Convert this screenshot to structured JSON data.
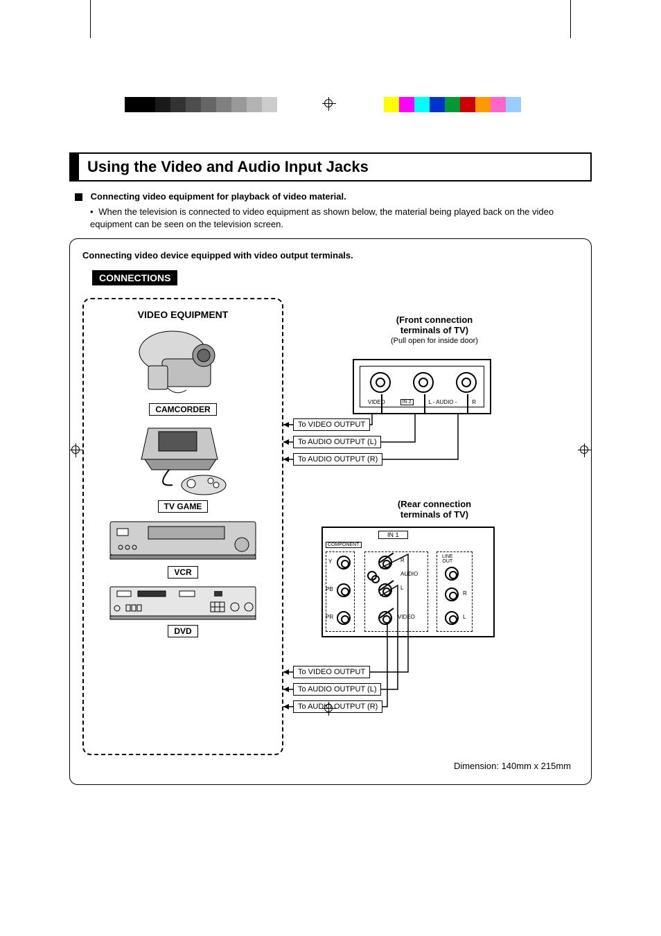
{
  "page": {
    "title": "Using the Video and Audio Input Jacks",
    "intro_heading": "Connecting video equipment for playback of video material.",
    "intro_body": "When the television is connected to video equipment as shown below, the material being played back on the video equipment can be seen on the television screen.",
    "dimension_note": "Dimension: 140mm x 215mm"
  },
  "panel": {
    "subtitle": "Connecting video device equipped with video output terminals.",
    "connections_label": "CONNECTIONS",
    "equipment_title": "VIDEO EQUIPMENT",
    "devices": {
      "camcorder": "CAMCORDER",
      "tvgame": "TV GAME",
      "vcr": "VCR",
      "dvd": "DVD"
    }
  },
  "front": {
    "heading": "(Front connection\nterminals of TV)",
    "sub": "(Pull open for inside door)",
    "jack_labels": {
      "video": "VIDEO",
      "in2": "IN 2",
      "audio_l": "L - AUDIO -",
      "audio_r": "R"
    },
    "signals": {
      "video": "To VIDEO OUTPUT",
      "audio_l": "To AUDIO OUTPUT (L)",
      "audio_r": "To AUDIO OUTPUT (R)"
    }
  },
  "rear": {
    "heading": "(Rear connection\nterminals of TV)",
    "in1": "IN 1",
    "component": "COMPONENT",
    "labels": {
      "y": "Y",
      "pb": "PB",
      "pr": "PR",
      "r": "R",
      "l": "L",
      "audio": "AUDIO",
      "video": "VIDEO",
      "lineout": "LINE\nOUT"
    },
    "signals": {
      "video": "To VIDEO OUTPUT",
      "audio_l": "To AUDIO OUTPUT (L)",
      "audio_r": "To AUDIO OUTPUT (R)"
    }
  },
  "colors": {
    "colorbar_left": [
      "#000000",
      "#000000",
      "#1a1a1a",
      "#333333",
      "#4d4d4d",
      "#666666",
      "#808080",
      "#999999",
      "#b3b3b3",
      "#cccccc",
      "#ffffff"
    ],
    "colorbar_right": [
      "#ffff00",
      "#ff00ff",
      "#00ffff",
      "#0033cc",
      "#009933",
      "#cc0000",
      "#ff9900",
      "#ff66cc",
      "#99ccff",
      "#ffffff"
    ]
  }
}
